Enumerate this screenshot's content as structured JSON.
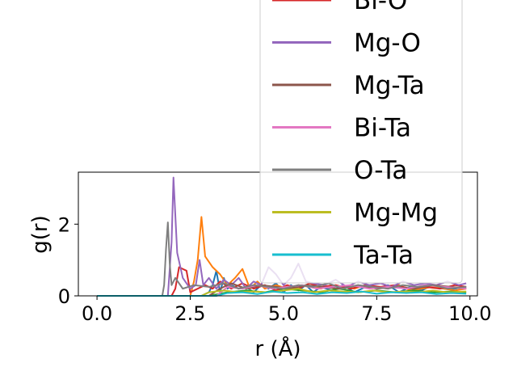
{
  "chart_data": {
    "type": "line",
    "xlabel": "r (Å)",
    "ylabel": "g(r)",
    "xlim": [
      -0.5,
      10.2
    ],
    "ylim": [
      0,
      3.45
    ],
    "xticks": [
      0.0,
      2.5,
      5.0,
      7.5,
      10.0
    ],
    "xtick_labels": [
      "0.0",
      "2.5",
      "5.0",
      "7.5",
      "10.0"
    ],
    "yticks": [
      0,
      2
    ],
    "ytick_labels": [
      "0",
      "2"
    ],
    "grid": false,
    "legend_position": "upper-right",
    "series": [
      {
        "name": "",
        "color": "#1f77b4",
        "in_legend": false,
        "x": [
          0,
          1.8,
          2.8,
          3.0,
          3.1,
          3.2,
          3.3,
          3.4,
          3.5,
          3.6,
          3.8,
          4.0,
          4.2,
          4.4,
          4.6,
          4.8,
          5.0,
          5.2,
          5.4,
          5.6,
          5.8,
          6.0,
          6.3,
          6.6,
          6.9,
          7.2,
          7.5,
          7.8,
          8.1,
          8.4,
          8.7,
          9.0,
          9.3,
          9.6,
          9.9
        ],
        "y": [
          0,
          0,
          0,
          0.1,
          0.3,
          0.7,
          0.1,
          0.5,
          0.2,
          0.3,
          0.2,
          0.25,
          0.1,
          0.3,
          0.2,
          0.35,
          0.1,
          0.3,
          0.15,
          0.3,
          0.1,
          0.25,
          0.15,
          0.3,
          0.1,
          0.25,
          0.2,
          0.3,
          0.1,
          0.25,
          0.15,
          0.3,
          0.2,
          0.2,
          0.25
        ]
      },
      {
        "name": "",
        "color": "#ff7f0e",
        "in_legend": false,
        "x": [
          0,
          2.5,
          2.6,
          2.7,
          2.8,
          2.9,
          3.1,
          3.3,
          3.5,
          3.7,
          3.9,
          4.1,
          4.3,
          4.5,
          4.8,
          5.1,
          5.4,
          5.7,
          6.0,
          6.3,
          6.6,
          6.9,
          7.2,
          7.5,
          7.8,
          8.1,
          8.4,
          8.7,
          9.0,
          9.3,
          9.6,
          9.9
        ],
        "y": [
          0,
          0,
          0.4,
          1.0,
          2.2,
          1.1,
          0.8,
          0.6,
          0.3,
          0.5,
          0.75,
          0.2,
          0.4,
          0.2,
          0.3,
          0.2,
          0.3,
          0.25,
          0.2,
          0.3,
          0.25,
          0.2,
          0.3,
          0.25,
          0.2,
          0.3,
          0.15,
          0.2,
          0.25,
          0.2,
          0.15,
          0.2
        ]
      },
      {
        "name": "",
        "color": "#2ca02c",
        "in_legend": false,
        "x": [
          0,
          3.0,
          3.5,
          4.0,
          4.5,
          5.0,
          5.5,
          6.0,
          6.5,
          7.0,
          7.5,
          8.0,
          8.5,
          9.0,
          9.5,
          9.9
        ],
        "y": [
          0,
          0,
          0.1,
          0.15,
          0.1,
          0.2,
          0.15,
          0.1,
          0.2,
          0.1,
          0.15,
          0.1,
          0.15,
          0.1,
          0.12,
          0.1
        ]
      },
      {
        "name": "Bi-O",
        "color": "#d62728",
        "in_legend": true,
        "x": [
          0,
          2.0,
          2.1,
          2.2,
          2.3,
          2.4,
          2.5,
          2.7,
          2.9,
          3.1,
          3.3,
          3.6,
          3.9,
          4.2,
          4.5,
          4.8,
          5.1,
          5.4,
          5.7,
          6.0,
          6.4,
          6.8,
          7.2,
          7.6,
          8.0,
          8.4,
          8.8,
          9.2,
          9.6,
          9.9
        ],
        "y": [
          0,
          0,
          0.2,
          0.8,
          0.75,
          0.7,
          0.1,
          0.2,
          0.3,
          0.2,
          0.4,
          0.2,
          0.35,
          0.2,
          0.3,
          0.15,
          0.3,
          0.2,
          0.35,
          0.25,
          0.3,
          0.2,
          0.3,
          0.25,
          0.3,
          0.2,
          0.25,
          0.2,
          0.3,
          0.25
        ]
      },
      {
        "name": "Mg-O",
        "color": "#9467bd",
        "in_legend": true,
        "x": [
          0,
          1.9,
          2.0,
          2.05,
          2.15,
          2.3,
          2.5,
          2.65,
          2.75,
          2.85,
          3.0,
          3.2,
          3.4,
          3.6,
          3.8,
          4.0,
          4.2,
          4.4,
          4.6,
          4.8,
          5.0,
          5.2,
          5.4,
          5.6,
          5.8,
          6.1,
          6.4,
          6.7,
          7.0,
          7.3,
          7.6,
          7.9,
          8.2,
          8.5,
          8.8,
          9.1,
          9.4,
          9.7,
          9.9
        ],
        "y": [
          0,
          0,
          1.5,
          3.3,
          1.2,
          0.5,
          0.2,
          0.3,
          1.0,
          0.3,
          0.5,
          0.2,
          0.45,
          0.3,
          0.5,
          0.2,
          0.4,
          0.3,
          0.8,
          0.6,
          0.3,
          0.5,
          0.9,
          0.4,
          0.35,
          0.3,
          0.45,
          0.25,
          0.4,
          0.3,
          0.35,
          0.25,
          0.4,
          0.3,
          0.35,
          0.3,
          0.4,
          0.3,
          0.35
        ]
      },
      {
        "name": "Mg-Ta",
        "color": "#8c564b",
        "in_legend": true,
        "x": [
          0,
          3.0,
          3.3,
          3.6,
          4.0,
          4.4,
          4.8,
          5.2,
          5.6,
          6.0,
          6.5,
          7.0,
          7.5,
          8.0,
          8.5,
          9.0,
          9.5,
          9.9
        ],
        "y": [
          0,
          0,
          0.2,
          0.35,
          0.2,
          0.3,
          0.25,
          0.2,
          0.3,
          0.25,
          0.2,
          0.3,
          0.2,
          0.25,
          0.2,
          0.3,
          0.25,
          0.2
        ]
      },
      {
        "name": "Bi-Ta",
        "color": "#e377c2",
        "in_legend": true,
        "x": [
          0,
          3.2,
          3.5,
          3.9,
          4.3,
          4.7,
          5.1,
          5.5,
          5.9,
          6.3,
          6.8,
          7.3,
          7.8,
          8.3,
          8.8,
          9.3,
          9.9
        ],
        "y": [
          0,
          0,
          0.25,
          0.2,
          0.3,
          0.2,
          0.25,
          0.3,
          0.2,
          0.25,
          0.3,
          0.2,
          0.25,
          0.2,
          0.3,
          0.25,
          0.2
        ]
      },
      {
        "name": "O-Ta",
        "color": "#7f7f7f",
        "in_legend": true,
        "x": [
          0,
          1.75,
          1.8,
          1.85,
          1.9,
          1.95,
          2.0,
          2.1,
          2.3,
          2.6,
          3.0,
          3.4,
          3.8,
          4.2,
          4.6,
          5.0,
          5.4,
          5.8,
          6.2,
          6.6,
          7.0,
          7.4,
          7.8,
          8.2,
          8.6,
          9.0,
          9.4,
          9.9
        ],
        "y": [
          0,
          0,
          0.3,
          1.3,
          2.05,
          0.9,
          0.3,
          0.5,
          0.2,
          0.3,
          0.25,
          0.35,
          0.2,
          0.3,
          0.25,
          0.2,
          0.3,
          0.25,
          0.35,
          0.2,
          0.3,
          0.25,
          0.2,
          0.3,
          0.25,
          0.3,
          0.2,
          0.25
        ]
      },
      {
        "name": "Mg-Mg",
        "color": "#bcbd22",
        "in_legend": true,
        "x": [
          0,
          2.8,
          3.0,
          3.4,
          3.8,
          4.2,
          4.6,
          5.0,
          5.4,
          5.8,
          6.2,
          6.6,
          7.0,
          7.4,
          7.8,
          8.2,
          8.6,
          9.0,
          9.4,
          9.9
        ],
        "y": [
          0,
          0,
          0.1,
          0.15,
          0.1,
          0.12,
          0.1,
          0.15,
          0.2,
          0.1,
          0.15,
          0.12,
          0.1,
          0.15,
          0.1,
          0.12,
          0.1,
          0.15,
          0.1,
          0.12
        ]
      },
      {
        "name": "Ta-Ta",
        "color": "#17becf",
        "in_legend": true,
        "x": [
          0,
          3.2,
          3.5,
          3.9,
          4.3,
          4.7,
          5.1,
          5.5,
          5.9,
          6.3,
          6.7,
          7.1,
          7.5,
          7.9,
          8.3,
          8.7,
          9.1,
          9.5,
          9.9
        ],
        "y": [
          0,
          0,
          0.08,
          0.1,
          0.05,
          0.12,
          0.08,
          0.1,
          0.05,
          0.1,
          0.08,
          0.12,
          0.06,
          0.1,
          0.08,
          0.1,
          0.05,
          0.08,
          0.06
        ]
      }
    ]
  }
}
